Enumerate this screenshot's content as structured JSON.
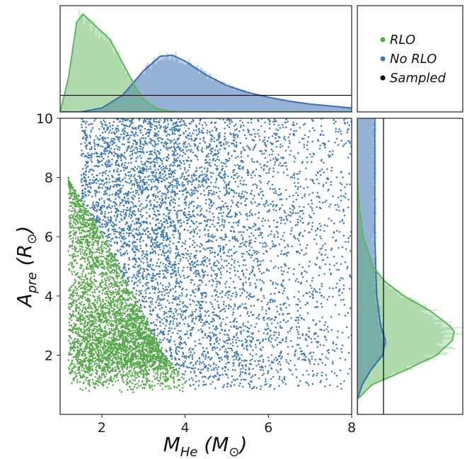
{
  "chart_data": {
    "type": "scatter",
    "title": "",
    "xlabel": "M",
    "xlabel_sub": "He",
    "xlabel_unit": "(M",
    "xlabel_unit_close": ")",
    "ylabel": "A",
    "ylabel_sub": "pre",
    "ylabel_unit": "(R",
    "ylabel_unit_close": ")",
    "sun_symbol": "⊙",
    "xlim": [
      1.0,
      8.0
    ],
    "ylim": [
      0.0,
      10.0
    ],
    "x_ticks": [
      2,
      4,
      6,
      8
    ],
    "y_ticks": [
      2,
      4,
      6,
      8,
      10
    ],
    "x_tick_labels": [
      "2",
      "4",
      "6",
      "8"
    ],
    "y_tick_labels": [
      "2",
      "4",
      "6",
      "8",
      "10"
    ],
    "grid": false,
    "legend_position": "top-right panel",
    "sampled_value": 8.75,
    "series": [
      {
        "name": "RLO",
        "color": "#56a84a",
        "kde_color": "#5cb85c",
        "region_description_boundary": [
          [
            1.2,
            7.9
          ],
          [
            1.5,
            7.3
          ],
          [
            2.0,
            6.2
          ],
          [
            2.5,
            4.8
          ],
          [
            3.0,
            3.4
          ],
          [
            3.5,
            2.0
          ],
          [
            4.0,
            1.2
          ],
          [
            4.4,
            0.6
          ]
        ],
        "x_kde": [
          [
            1.0,
            0.0
          ],
          [
            1.2,
            0.35
          ],
          [
            1.4,
            0.92
          ],
          [
            1.55,
            1.0
          ],
          [
            1.8,
            0.9
          ],
          [
            2.0,
            0.82
          ],
          [
            2.2,
            0.74
          ],
          [
            2.5,
            0.5
          ],
          [
            2.8,
            0.26
          ],
          [
            3.0,
            0.13
          ],
          [
            3.3,
            0.04
          ],
          [
            3.6,
            0.01
          ],
          [
            4.0,
            0.0
          ]
        ],
        "y_kde": [
          [
            0.5,
            0.0
          ],
          [
            1.0,
            0.15
          ],
          [
            1.5,
            0.5
          ],
          [
            2.0,
            0.82
          ],
          [
            2.5,
            0.98
          ],
          [
            2.8,
            1.0
          ],
          [
            3.0,
            0.95
          ],
          [
            3.5,
            0.75
          ],
          [
            4.0,
            0.48
          ],
          [
            4.5,
            0.28
          ],
          [
            5.0,
            0.16
          ],
          [
            6.0,
            0.06
          ],
          [
            7.0,
            0.02
          ],
          [
            8.0,
            0.0
          ]
        ]
      },
      {
        "name": "No RLO",
        "color": "#3d78b8",
        "kde_color": "#3a6fb0",
        "x_kde": [
          [
            1.5,
            0.0
          ],
          [
            2.0,
            0.04
          ],
          [
            2.5,
            0.17
          ],
          [
            3.0,
            0.42
          ],
          [
            3.4,
            0.57
          ],
          [
            3.7,
            0.58
          ],
          [
            4.0,
            0.52
          ],
          [
            4.5,
            0.38
          ],
          [
            5.0,
            0.27
          ],
          [
            5.5,
            0.2
          ],
          [
            6.0,
            0.15
          ],
          [
            6.5,
            0.11
          ],
          [
            7.0,
            0.08
          ],
          [
            7.5,
            0.06
          ],
          [
            8.0,
            0.04
          ]
        ],
        "y_kde": [
          [
            0.5,
            0.0
          ],
          [
            1.0,
            0.05
          ],
          [
            1.5,
            0.14
          ],
          [
            2.0,
            0.26
          ],
          [
            2.5,
            0.29
          ],
          [
            3.0,
            0.24
          ],
          [
            4.0,
            0.2
          ],
          [
            5.0,
            0.19
          ],
          [
            6.0,
            0.18
          ],
          [
            7.0,
            0.18
          ],
          [
            8.0,
            0.18
          ],
          [
            9.0,
            0.18
          ],
          [
            10.0,
            0.18
          ]
        ]
      },
      {
        "name": "Sampled",
        "color": "#000000"
      }
    ]
  }
}
